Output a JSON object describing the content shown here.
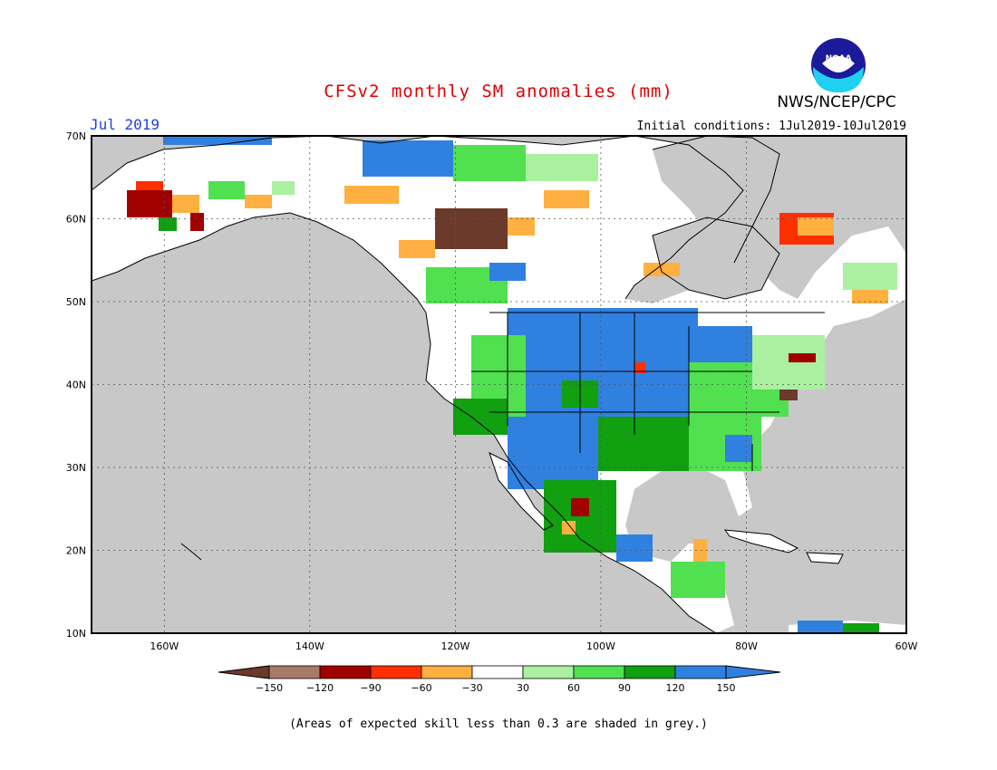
{
  "header": {
    "title": "CFSv2 monthly SM anomalies (mm)",
    "org": "NWS/NCEP/CPC",
    "logo_text": "NOAA",
    "month": "Jul 2019",
    "init_conditions": "Initial conditions: 1Jul2019-10Jul2019"
  },
  "map": {
    "lon_range": [
      -172,
      -60
    ],
    "lat_range": [
      10,
      70
    ],
    "lat_labels": [
      "70N",
      "60N",
      "50N",
      "40N",
      "30N",
      "20N",
      "10N"
    ],
    "lon_labels": [
      "160W",
      "140W",
      "120W",
      "100W",
      "80W",
      "60W"
    ],
    "skill_mask_color": "#c8c8c8",
    "ocean_color": "#c8c8c8"
  },
  "legend": {
    "ticks": [
      "-150",
      "-120",
      "-90",
      "-60",
      "-30",
      "30",
      "60",
      "90",
      "120",
      "150"
    ],
    "colors": [
      "#6b3a2a",
      "#a87a6a",
      "#a00000",
      "#ff3000",
      "#ffb040",
      "#ffffff",
      "#aaf0a0",
      "#50e050",
      "#10a010",
      "#3080e0",
      "#3080e0"
    ]
  },
  "footnote": "(Areas of expected skill less than 0.3 are shaded in grey.)"
}
